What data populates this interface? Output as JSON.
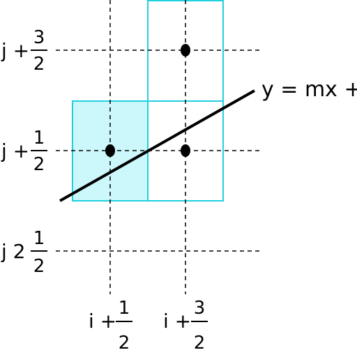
{
  "line_label": "y = mx + h",
  "row_labels": [
    {
      "prefix": "j +",
      "num": "3",
      "den": "2"
    },
    {
      "prefix": "j +",
      "num": "1",
      "den": "2"
    },
    {
      "prefix": "j 2",
      "num": "1",
      "den": "2"
    }
  ],
  "col_labels": [
    {
      "prefix": "i +",
      "num": "1",
      "den": "2"
    },
    {
      "prefix": "i +",
      "num": "3",
      "den": "2"
    }
  ],
  "colors": {
    "cell_stroke": "#1fd0e0",
    "cell_fill": "#ccf8fc",
    "line": "#000000",
    "guide": "#000000",
    "dot": "#000000"
  }
}
